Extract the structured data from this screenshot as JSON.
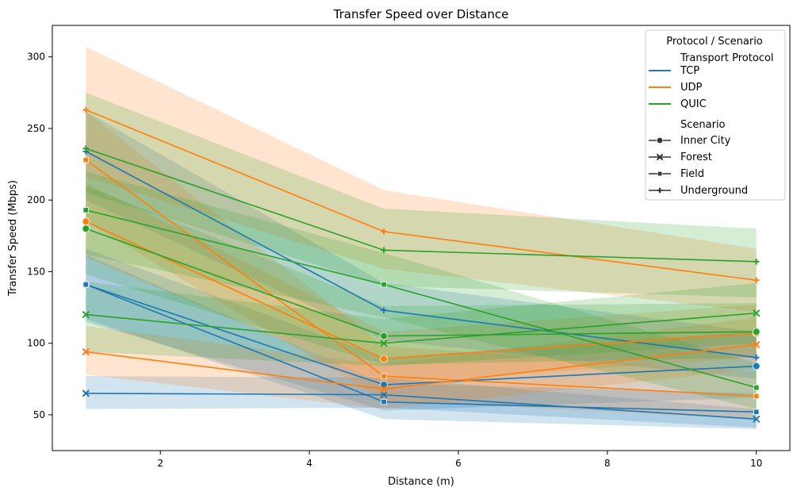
{
  "chart_data": {
    "type": "line",
    "title": "Transfer Speed over Distance",
    "xlabel": "Distance (m)",
    "ylabel": "Transfer Speed (Mbps)",
    "x": [
      1,
      5,
      10
    ],
    "xlim": [
      0.55,
      10.45
    ],
    "ylim": [
      25,
      322
    ],
    "xticks": [
      2,
      4,
      6,
      8,
      10
    ],
    "yticks": [
      50,
      100,
      150,
      200,
      250,
      300
    ],
    "grid": false,
    "legend": {
      "title": "Protocol / Scenario",
      "placement": "top-right",
      "hue_header": "Transport Protocol",
      "style_header": "Scenario",
      "protocols": [
        {
          "name": "TCP",
          "color": "#1f77b4"
        },
        {
          "name": "UDP",
          "color": "#ff7f0e"
        },
        {
          "name": "QUIC",
          "color": "#2ca02c"
        }
      ],
      "scenarios": [
        {
          "name": "Inner City",
          "marker": "circle"
        },
        {
          "name": "Forest",
          "marker": "x"
        },
        {
          "name": "Field",
          "marker": "square"
        },
        {
          "name": "Underground",
          "marker": "plus"
        }
      ]
    },
    "series": [
      {
        "protocol": "TCP",
        "scenario": "Inner City",
        "values": [
          141,
          71,
          84
        ],
        "ci_low": [
          115,
          53,
          62
        ],
        "ci_high": [
          166,
          90,
          108
        ]
      },
      {
        "protocol": "TCP",
        "scenario": "Forest",
        "values": [
          65,
          64,
          47
        ],
        "ci_low": [
          54,
          55,
          41
        ],
        "ci_high": [
          77,
          76,
          54
        ]
      },
      {
        "protocol": "TCP",
        "scenario": "Field",
        "values": [
          141,
          59,
          52
        ],
        "ci_low": [
          117,
          47,
          40
        ],
        "ci_high": [
          162,
          72,
          65
        ]
      },
      {
        "protocol": "TCP",
        "scenario": "Underground",
        "values": [
          234,
          123,
          90
        ],
        "ci_low": [
          200,
          102,
          75
        ],
        "ci_high": [
          262,
          142,
          108
        ]
      },
      {
        "protocol": "UDP",
        "scenario": "Inner City",
        "values": [
          185,
          89,
          107
        ],
        "ci_low": [
          160,
          72,
          90
        ],
        "ci_high": [
          212,
          108,
          127
        ]
      },
      {
        "protocol": "UDP",
        "scenario": "Forest",
        "values": [
          94,
          68,
          99
        ],
        "ci_low": [
          78,
          54,
          82
        ],
        "ci_high": [
          112,
          85,
          118
        ]
      },
      {
        "protocol": "UDP",
        "scenario": "Field",
        "values": [
          228,
          77,
          63
        ],
        "ci_low": [
          185,
          60,
          47
        ],
        "ci_high": [
          262,
          98,
          80
        ]
      },
      {
        "protocol": "UDP",
        "scenario": "Underground",
        "values": [
          263,
          178,
          144
        ],
        "ci_low": [
          216,
          152,
          122
        ],
        "ci_high": [
          307,
          207,
          166
        ]
      },
      {
        "protocol": "QUIC",
        "scenario": "Inner City",
        "values": [
          180,
          105,
          108
        ],
        "ci_low": [
          148,
          85,
          90
        ],
        "ci_high": [
          210,
          126,
          128
        ]
      },
      {
        "protocol": "QUIC",
        "scenario": "Forest",
        "values": [
          120,
          100,
          121
        ],
        "ci_low": [
          94,
          84,
          100
        ],
        "ci_high": [
          143,
          117,
          142
        ]
      },
      {
        "protocol": "QUIC",
        "scenario": "Field",
        "values": [
          193,
          141,
          69
        ],
        "ci_low": [
          162,
          118,
          54
        ],
        "ci_high": [
          220,
          163,
          86
        ]
      },
      {
        "protocol": "QUIC",
        "scenario": "Underground",
        "values": [
          236,
          165,
          157
        ],
        "ci_low": [
          205,
          140,
          132
        ],
        "ci_high": [
          275,
          194,
          180
        ]
      }
    ]
  }
}
